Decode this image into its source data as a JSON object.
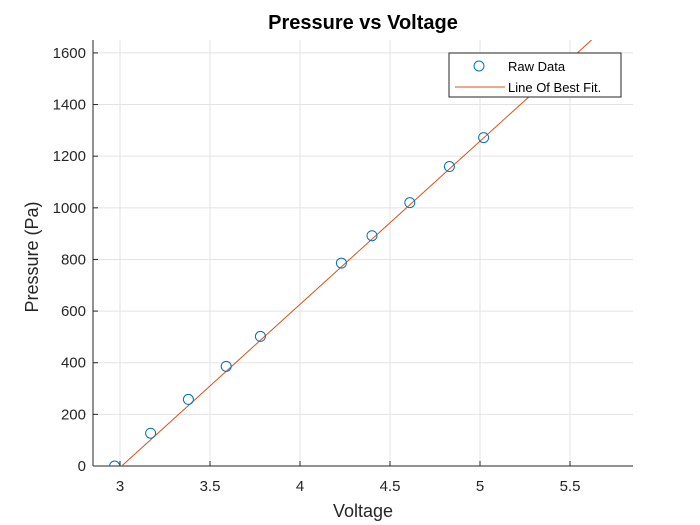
{
  "chart_data": {
    "type": "scatter",
    "title": "Pressure vs Voltage",
    "xlabel": "Voltage",
    "ylabel": "Pressure (Pa)",
    "xlim": [
      2.85,
      5.85
    ],
    "ylim": [
      0,
      1650
    ],
    "xticks": [
      3,
      3.5,
      4,
      4.5,
      5,
      5.5
    ],
    "xtick_labels": [
      "3",
      "3.5",
      "4",
      "4.5",
      "5",
      "5.5"
    ],
    "yticks": [
      0,
      200,
      400,
      600,
      800,
      1000,
      1200,
      1400,
      1600
    ],
    "ytick_labels": [
      "0",
      "200",
      "400",
      "600",
      "800",
      "1000",
      "1200",
      "1400",
      "1600"
    ],
    "grid": true,
    "legend_position": "top-right",
    "series": [
      {
        "name": "Raw Data",
        "style": "markers",
        "marker": "circle",
        "color": "#0072BD",
        "x": [
          2.97,
          3.17,
          3.38,
          3.59,
          3.78,
          4.23,
          4.4,
          4.61,
          4.83,
          5.02
        ],
        "y": [
          0,
          127,
          258,
          386,
          502,
          786,
          892,
          1020,
          1160,
          1272
        ]
      },
      {
        "name": "Line Of Best Fit.",
        "style": "line",
        "color": "#D95319",
        "x": [
          2.97,
          5.62
        ],
        "y": [
          -25,
          1650
        ]
      }
    ]
  }
}
